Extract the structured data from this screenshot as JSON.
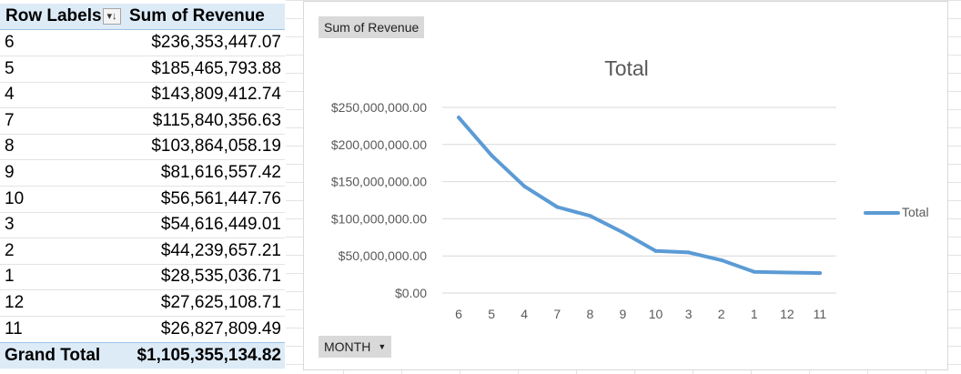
{
  "pivot": {
    "header": {
      "row_labels": "Row Labels",
      "sum_label": "Sum of Revenue",
      "filter_glyph": "▾↓"
    },
    "rows": [
      {
        "label": "6",
        "value": "$236,353,447.07"
      },
      {
        "label": "5",
        "value": "$185,465,793.88"
      },
      {
        "label": "4",
        "value": "$143,809,412.74"
      },
      {
        "label": "7",
        "value": "$115,840,356.63"
      },
      {
        "label": "8",
        "value": "$103,864,058.19"
      },
      {
        "label": "9",
        "value": "$81,616,557.42"
      },
      {
        "label": "10",
        "value": "$56,561,447.76"
      },
      {
        "label": "3",
        "value": "$54,616,449.01"
      },
      {
        "label": "2",
        "value": "$44,239,657.21"
      },
      {
        "label": "1",
        "value": "$28,535,036.71"
      },
      {
        "label": "12",
        "value": "$27,625,108.71"
      },
      {
        "label": "11",
        "value": "$26,827,809.49"
      }
    ],
    "grand_total": {
      "label": "Grand Total",
      "value": "$1,105,355,134.82"
    }
  },
  "chart_ui": {
    "sum_button": "Sum of Revenue",
    "month_button": "MONTH",
    "month_arrow": "▼"
  },
  "chart_data": {
    "type": "line",
    "title": "Total",
    "categories": [
      "6",
      "5",
      "4",
      "7",
      "8",
      "9",
      "10",
      "3",
      "2",
      "1",
      "12",
      "11"
    ],
    "series": [
      {
        "name": "Total",
        "color": "#5b9bd5",
        "values": [
          236353447.07,
          185465793.88,
          143809412.74,
          115840356.63,
          103864058.19,
          81616557.42,
          56561447.76,
          54616449.01,
          44239657.21,
          28535036.71,
          27625108.71,
          26827809.49
        ]
      }
    ],
    "yticks": [
      "$0.00",
      "$50,000,000.00",
      "$100,000,000.00",
      "$150,000,000.00",
      "$200,000,000.00",
      "$250,000,000.00"
    ],
    "ylim": [
      0,
      250000000
    ],
    "grid": true,
    "legend": "right"
  }
}
